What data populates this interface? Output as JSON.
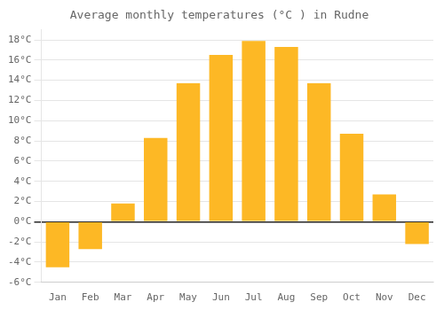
{
  "chart_data": {
    "type": "bar",
    "title": "Average monthly temperatures (°C ) in Rudne",
    "categories": [
      "Jan",
      "Feb",
      "Mar",
      "Apr",
      "May",
      "Jun",
      "Jul",
      "Aug",
      "Sep",
      "Oct",
      "Nov",
      "Dec"
    ],
    "values": [
      -4.5,
      -2.7,
      1.8,
      8.3,
      13.7,
      16.5,
      17.9,
      17.3,
      13.7,
      8.7,
      2.7,
      -2.2
    ],
    "color": "#FDB825",
    "ylim": [
      -6,
      19
    ],
    "yticks": [
      {
        "value": -6,
        "label": "-6°C"
      },
      {
        "value": -4,
        "label": "-4°C"
      },
      {
        "value": -2,
        "label": "-2°C"
      },
      {
        "value": 0,
        "label": "0°C"
      },
      {
        "value": 2,
        "label": "2°C"
      },
      {
        "value": 4,
        "label": "4°C"
      },
      {
        "value": 6,
        "label": "6°C"
      },
      {
        "value": 8,
        "label": "8°C"
      },
      {
        "value": 10,
        "label": "10°C"
      },
      {
        "value": 12,
        "label": "12°C"
      },
      {
        "value": 14,
        "label": "14°C"
      },
      {
        "value": 16,
        "label": "16°C"
      },
      {
        "value": 18,
        "label": "18°C"
      }
    ],
    "grid": true
  }
}
